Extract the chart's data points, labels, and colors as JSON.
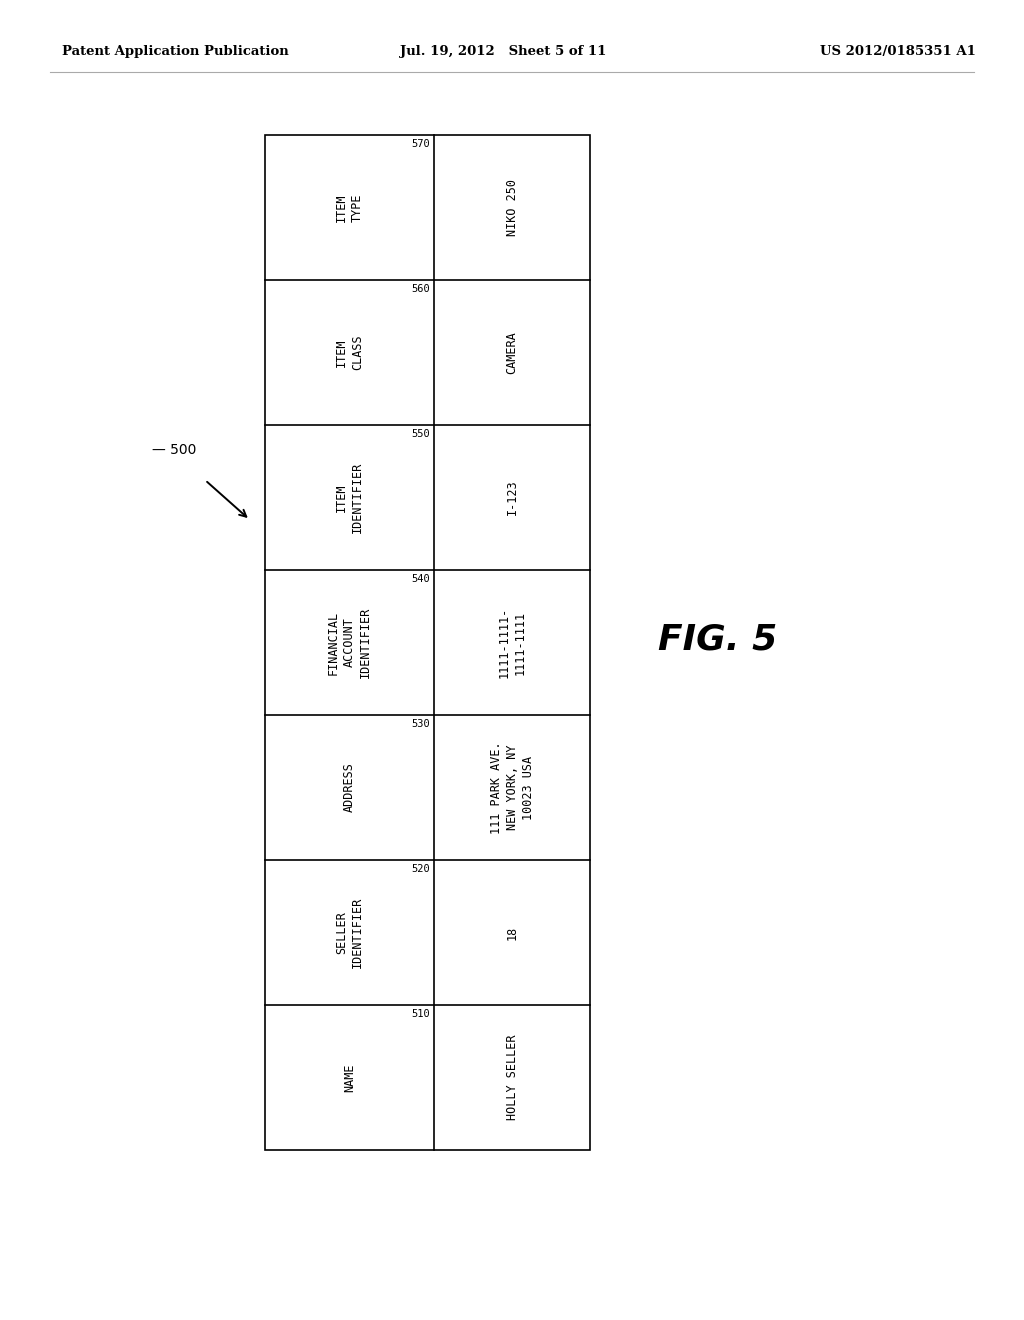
{
  "header_left": "Patent Application Publication",
  "header_mid": "Jul. 19, 2012   Sheet 5 of 11",
  "header_right": "US 2012/0185351 A1",
  "fig_label": "FIG. 5",
  "ref_label": "500",
  "rows": [
    {
      "header": "ITEM\nTYPE",
      "number": "570",
      "value": "NIKO 250"
    },
    {
      "header": "ITEM\nCLASS",
      "number": "560",
      "value": "CAMERA"
    },
    {
      "header": "ITEM\nIDENTIFIER",
      "number": "550",
      "value": "I-123"
    },
    {
      "header": "FINANCIAL\nACCOUNT\nIDENTIFIER",
      "number": "540",
      "value": "1111-1111-\n1111-1111"
    },
    {
      "header": "ADDRESS",
      "number": "530",
      "value": "111 PARK AVE.\nNEW YORK, NY\n10023 USA"
    },
    {
      "header": "SELLER\nIDENTIFIER",
      "number": "520",
      "value": "18"
    },
    {
      "header": "NAME",
      "number": "510",
      "value": "HOLLY SELLER"
    }
  ],
  "background_color": "#ffffff",
  "table_border_color": "#000000",
  "text_color": "#000000"
}
